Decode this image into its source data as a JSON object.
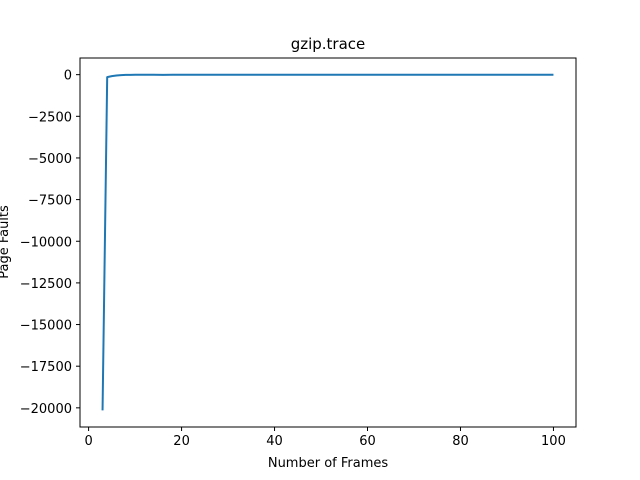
{
  "chart_data": {
    "type": "line",
    "title": "gzip.trace",
    "xlabel": "Number of Frames",
    "ylabel": "Page Faults",
    "xlim": [
      -1.85,
      104.85
    ],
    "ylim": [
      -21150,
      1000
    ],
    "xticks": [
      0,
      20,
      40,
      60,
      80,
      100
    ],
    "yticks": [
      0,
      -2500,
      -5000,
      -7500,
      -10000,
      -12500,
      -15000,
      -17500,
      -20000
    ],
    "xtick_labels": [
      "0",
      "20",
      "40",
      "60",
      "80",
      "100"
    ],
    "ytick_labels": [
      "0",
      "−2500",
      "−5000",
      "−7500",
      "−10000",
      "−12500",
      "−15000",
      "−17500",
      "−20000"
    ],
    "grid": false,
    "series_color": "#1f77b4",
    "series": [
      {
        "x": [
          3,
          4,
          5,
          6,
          7,
          8,
          9,
          10,
          12,
          14,
          16,
          18,
          20,
          25,
          30,
          40,
          50,
          60,
          70,
          80,
          90,
          100
        ],
        "values": [
          -20150,
          -150,
          -90,
          -50,
          -25,
          -15,
          -10,
          -8,
          -6,
          -6,
          -10,
          -5,
          -5,
          -5,
          -4,
          -3,
          -3,
          -3,
          -2,
          -2,
          -2,
          -2
        ]
      }
    ]
  }
}
